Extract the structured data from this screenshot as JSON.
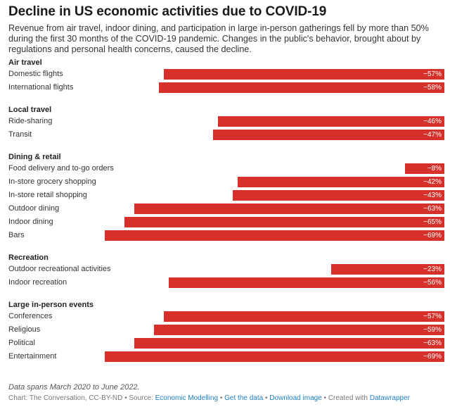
{
  "header": {
    "title": "Decline in US economic activities due to COVID-19",
    "subtitle": "Revenue from air travel, indoor dining, and participation in large in-person gatherings fell by more than 50% during the first 30 months of the COVID-19 pandemic. Changes in the public's behavior, brought about by regulations and personal health concerns, caused the decline."
  },
  "colors": {
    "bar": "#d5302a",
    "link": "#1e7fc2"
  },
  "chart_data": {
    "type": "bar",
    "orientation": "horizontal",
    "title": "Decline in US economic activities due to COVID-19",
    "unit": "%",
    "xlim": [
      -70,
      0
    ],
    "groups": [
      {
        "name": "Air travel",
        "items": [
          {
            "label": "Domestic flights",
            "value": -57
          },
          {
            "label": "International flights",
            "value": -58
          }
        ]
      },
      {
        "name": "Local travel",
        "items": [
          {
            "label": "Ride-sharing",
            "value": -46
          },
          {
            "label": "Transit",
            "value": -47
          }
        ]
      },
      {
        "name": "Dining & retail",
        "items": [
          {
            "label": "Food delivery and to-go orders",
            "value": -8
          },
          {
            "label": "In-store grocery shopping",
            "value": -42
          },
          {
            "label": "In-store retail shopping",
            "value": -43
          },
          {
            "label": "Outdoor dining",
            "value": -63
          },
          {
            "label": "Indoor dining",
            "value": -65
          },
          {
            "label": "Bars",
            "value": -69
          }
        ]
      },
      {
        "name": "Recreation",
        "items": [
          {
            "label": "Outdoor recreational activities",
            "value": -23
          },
          {
            "label": "Indoor recreation",
            "value": -56
          }
        ]
      },
      {
        "name": "Large in-person events",
        "items": [
          {
            "label": "Conferences",
            "value": -57
          },
          {
            "label": "Religious",
            "value": -59
          },
          {
            "label": "Political",
            "value": -63
          },
          {
            "label": "Entertainment",
            "value": -69
          }
        ]
      }
    ]
  },
  "footer": {
    "note": "Data spans March 2020 to June 2022.",
    "credit": "Chart: The Conversation, CC-BY-ND • Source: ",
    "source_link": "Economic Modelling",
    "sep1": " • ",
    "get_data": "Get the data",
    "sep2": " • ",
    "download": "Download image",
    "sep3": " • Created with ",
    "created_with": "Datawrapper"
  }
}
